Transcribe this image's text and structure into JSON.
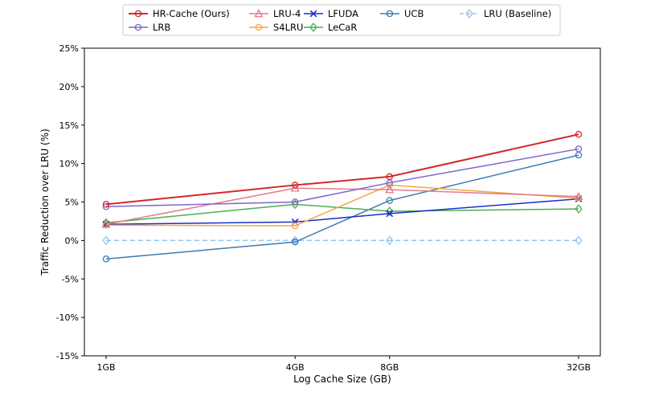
{
  "chart_data": {
    "type": "line",
    "title": "",
    "xlabel": "Log Cache Size (GB)",
    "ylabel": "Traffic Reduction over LRU (%)",
    "categories": [
      "1GB",
      "4GB",
      "8GB",
      "32GB"
    ],
    "x_positions_gb_log2": [
      0,
      2,
      3,
      5
    ],
    "ylim": [
      -15,
      25
    ],
    "yticks": [
      -15,
      -10,
      -5,
      0,
      5,
      10,
      15,
      20,
      25
    ],
    "ytick_labels": [
      "-15%",
      "-10%",
      "-5%",
      "0%",
      "5%",
      "10%",
      "15%",
      "20%",
      "25%"
    ],
    "grid": false,
    "legend_position": "top-center",
    "series": [
      {
        "name": "HR-Cache (Ours)",
        "color": "#d62728",
        "marker": "circle",
        "dash": false,
        "width": 2,
        "values": [
          4.7,
          7.2,
          8.3,
          13.8
        ]
      },
      {
        "name": "LRB",
        "color": "#8066cc",
        "marker": "circle",
        "dash": false,
        "width": 1.5,
        "values": [
          4.4,
          5.0,
          7.5,
          11.9
        ]
      },
      {
        "name": "LRU-4",
        "color": "#e07b8a",
        "marker": "triangle",
        "dash": false,
        "width": 1.5,
        "values": [
          2.1,
          6.8,
          6.6,
          5.7
        ]
      },
      {
        "name": "S4LRU",
        "color": "#f5a742",
        "marker": "circle",
        "dash": false,
        "width": 1.5,
        "values": [
          2.0,
          1.9,
          7.2,
          5.5
        ]
      },
      {
        "name": "LFUDA",
        "color": "#1a2fc9",
        "marker": "x",
        "dash": false,
        "width": 1.5,
        "values": [
          2.1,
          2.4,
          3.5,
          5.4
        ]
      },
      {
        "name": "LeCaR",
        "color": "#4caf50",
        "marker": "diamond",
        "dash": false,
        "width": 1.5,
        "values": [
          2.3,
          4.7,
          3.8,
          4.1
        ]
      },
      {
        "name": "UCB",
        "color": "#3b7bb5",
        "marker": "circle",
        "dash": false,
        "width": 1.5,
        "values": [
          -2.4,
          -0.2,
          5.2,
          11.1
        ]
      },
      {
        "name": "LRU (Baseline)",
        "color": "#8ec5f5",
        "marker": "diamond",
        "dash": true,
        "width": 1.5,
        "values": [
          0,
          0,
          0,
          0
        ]
      }
    ]
  }
}
